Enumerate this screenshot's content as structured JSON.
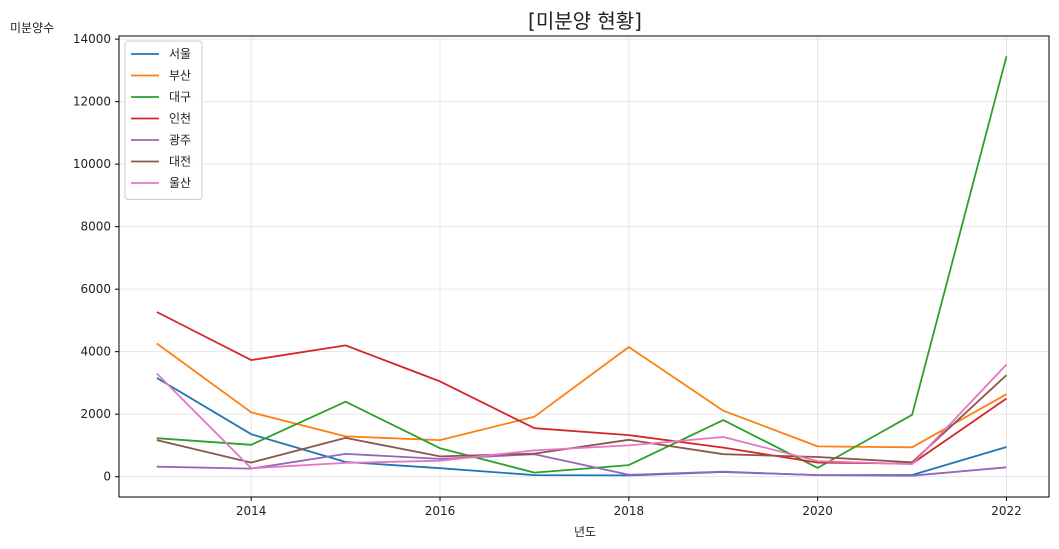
{
  "chart_data": {
    "type": "line",
    "title": "[미분양 현황]",
    "xlabel": "년도",
    "ylabel": "미분양수",
    "x": [
      2013,
      2014,
      2015,
      2016,
      2017,
      2018,
      2019,
      2020,
      2021,
      2022
    ],
    "xlim": [
      2012.6,
      2022.45
    ],
    "ylim": [
      -650,
      14100
    ],
    "xticks": [
      2014,
      2016,
      2018,
      2020,
      2022
    ],
    "yticks": [
      0,
      2000,
      4000,
      6000,
      8000,
      10000,
      12000,
      14000
    ],
    "grid": true,
    "legend_position": "top-left",
    "series": [
      {
        "name": "서울",
        "color": "#1f77b4",
        "values": [
          3160,
          1360,
          470,
          270,
          50,
          40,
          150,
          50,
          55,
          950
        ]
      },
      {
        "name": "부산",
        "color": "#ff7f0e",
        "values": [
          4260,
          2060,
          1290,
          1170,
          1920,
          4150,
          2110,
          970,
          940,
          2640
        ]
      },
      {
        "name": "대구",
        "color": "#2ca02c",
        "values": [
          1230,
          1020,
          2400,
          910,
          130,
          370,
          1810,
          280,
          1980,
          13450
        ]
      },
      {
        "name": "인천",
        "color": "#d62728",
        "values": [
          5270,
          3730,
          4200,
          3050,
          1550,
          1330,
          930,
          450,
          420,
          2500
        ]
      },
      {
        "name": "광주",
        "color": "#9467bd",
        "values": [
          320,
          260,
          730,
          570,
          720,
          60,
          160,
          50,
          30,
          300
        ]
      },
      {
        "name": "대전",
        "color": "#8c564b",
        "values": [
          1170,
          450,
          1240,
          650,
          740,
          1180,
          720,
          630,
          460,
          3250
        ]
      },
      {
        "name": "울산",
        "color": "#e377c2",
        "values": [
          3300,
          270,
          440,
          510,
          840,
          1000,
          1270,
          500,
          400,
          3590
        ]
      }
    ]
  }
}
